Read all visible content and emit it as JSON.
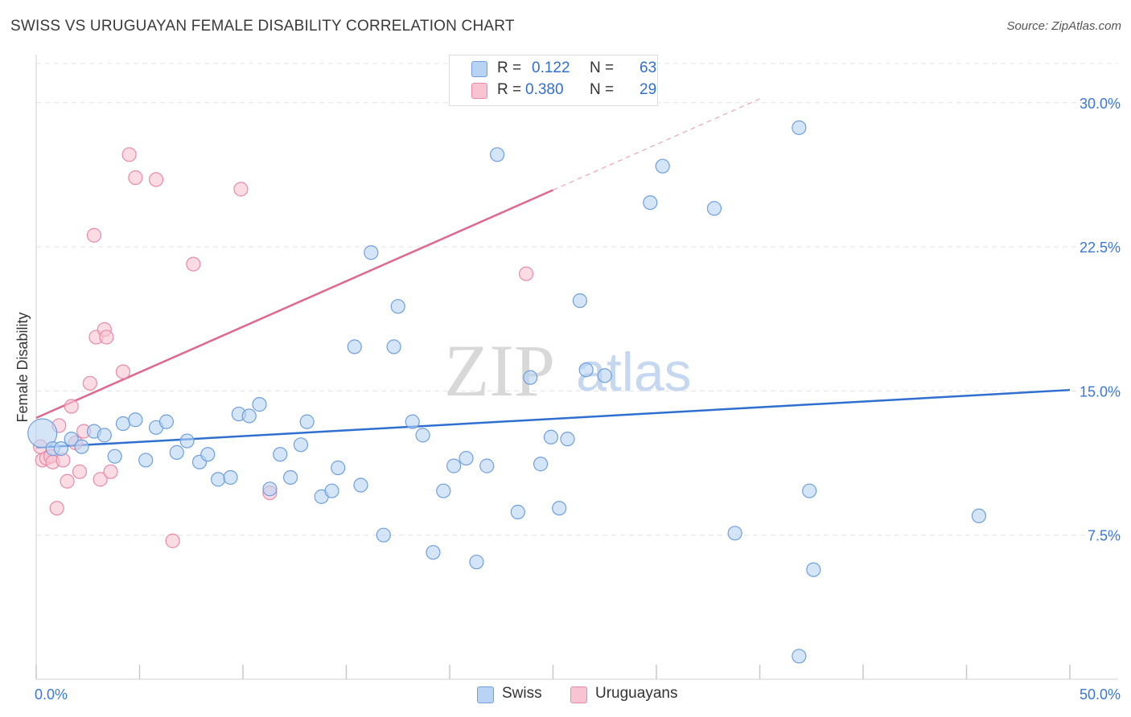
{
  "header": {
    "title": "SWISS VS URUGUAYAN FEMALE DISABILITY CORRELATION CHART",
    "source": "Source: ZipAtlas.com"
  },
  "legend": {
    "swiss": {
      "r_label": "R =",
      "r_value": "0.122",
      "n_label": "N =",
      "n_value": "63"
    },
    "uruguayans": {
      "r_label": "R =",
      "r_value": "0.380",
      "n_label": "N =",
      "n_value": "29"
    }
  },
  "bottom_legend": {
    "swiss": "Swiss",
    "uruguayans": "Uruguayans"
  },
  "watermark": {
    "zip": "ZIP",
    "atlas": "atlas"
  },
  "colors": {
    "swiss_fill": "#b9d3f3",
    "swiss_stroke": "#6f9fdc",
    "swiss_line": "#2f6fd0",
    "uru_fill": "#f8c4d4",
    "uru_stroke": "#e88aa8",
    "uru_line": "#e0678f",
    "grid": "#e3e3e3",
    "axis_text": "#3b78d6"
  },
  "chart_data": {
    "type": "scatter",
    "title": "SWISS VS URUGUAYAN FEMALE DISABILITY CORRELATION CHART",
    "xlabel": "",
    "ylabel": "Female Disability",
    "xlim": [
      0,
      50
    ],
    "ylim": [
      0,
      32.5
    ],
    "x_tick_labels": [
      "0.0%",
      "50.0%"
    ],
    "y_ticks": [
      7.5,
      15.0,
      22.5,
      30.0
    ],
    "y_tick_labels": [
      "7.5%",
      "15.0%",
      "22.5%",
      "30.0%"
    ],
    "series": [
      {
        "name": "Swiss",
        "trend": {
          "x": [
            0,
            50
          ],
          "y": [
            12.05,
            15.05
          ],
          "dashed_from": null
        },
        "points": [
          [
            0.3,
            12.8
          ],
          [
            0.8,
            12.0
          ],
          [
            1.2,
            12.0
          ],
          [
            1.7,
            12.5
          ],
          [
            2.2,
            12.1
          ],
          [
            2.8,
            12.9
          ],
          [
            3.3,
            12.7
          ],
          [
            3.8,
            11.6
          ],
          [
            4.2,
            13.3
          ],
          [
            4.8,
            13.5
          ],
          [
            5.3,
            11.4
          ],
          [
            5.8,
            13.1
          ],
          [
            6.3,
            13.4
          ],
          [
            6.8,
            11.8
          ],
          [
            7.3,
            12.4
          ],
          [
            7.9,
            11.3
          ],
          [
            8.3,
            11.7
          ],
          [
            8.8,
            10.4
          ],
          [
            9.4,
            10.5
          ],
          [
            9.8,
            13.8
          ],
          [
            10.3,
            13.7
          ],
          [
            10.8,
            14.3
          ],
          [
            11.3,
            9.9
          ],
          [
            11.8,
            11.7
          ],
          [
            12.3,
            10.5
          ],
          [
            12.8,
            12.2
          ],
          [
            13.1,
            13.4
          ],
          [
            13.8,
            9.5
          ],
          [
            14.3,
            9.8
          ],
          [
            14.6,
            11.0
          ],
          [
            15.4,
            17.3
          ],
          [
            15.7,
            10.1
          ],
          [
            16.2,
            22.2
          ],
          [
            16.8,
            7.5
          ],
          [
            17.3,
            17.3
          ],
          [
            17.5,
            19.4
          ],
          [
            18.2,
            13.4
          ],
          [
            18.7,
            12.7
          ],
          [
            19.2,
            6.6
          ],
          [
            19.7,
            9.8
          ],
          [
            20.2,
            11.1
          ],
          [
            20.8,
            11.5
          ],
          [
            21.3,
            6.1
          ],
          [
            21.8,
            11.1
          ],
          [
            22.3,
            27.3
          ],
          [
            23.3,
            8.7
          ],
          [
            23.9,
            15.7
          ],
          [
            24.4,
            11.2
          ],
          [
            24.9,
            12.6
          ],
          [
            25.3,
            8.9
          ],
          [
            25.7,
            12.5
          ],
          [
            26.3,
            19.7
          ],
          [
            26.6,
            16.1
          ],
          [
            27.5,
            15.8
          ],
          [
            29.7,
            24.8
          ],
          [
            30.3,
            26.7
          ],
          [
            32.8,
            24.5
          ],
          [
            33.8,
            7.6
          ],
          [
            36.9,
            1.2
          ],
          [
            36.9,
            28.7
          ],
          [
            37.4,
            9.8
          ],
          [
            37.6,
            5.7
          ],
          [
            45.6,
            8.5
          ]
        ]
      },
      {
        "name": "Uruguayans",
        "trend": {
          "x": [
            0,
            35
          ],
          "y": [
            13.6,
            30.2
          ],
          "dashed_from": 25
        },
        "points": [
          [
            0.2,
            12.1
          ],
          [
            0.3,
            11.4
          ],
          [
            0.5,
            11.5
          ],
          [
            0.7,
            11.6
          ],
          [
            0.8,
            11.3
          ],
          [
            1.0,
            8.9
          ],
          [
            1.1,
            13.2
          ],
          [
            1.3,
            11.4
          ],
          [
            1.5,
            10.3
          ],
          [
            1.7,
            14.2
          ],
          [
            1.9,
            12.3
          ],
          [
            2.1,
            10.8
          ],
          [
            2.3,
            12.9
          ],
          [
            2.6,
            15.4
          ],
          [
            2.8,
            23.1
          ],
          [
            2.9,
            17.8
          ],
          [
            3.1,
            10.4
          ],
          [
            3.3,
            18.2
          ],
          [
            3.4,
            17.8
          ],
          [
            3.6,
            10.8
          ],
          [
            4.2,
            16.0
          ],
          [
            4.5,
            27.3
          ],
          [
            4.8,
            26.1
          ],
          [
            5.8,
            26.0
          ],
          [
            6.6,
            7.2
          ],
          [
            7.6,
            21.6
          ],
          [
            9.9,
            25.5
          ],
          [
            11.3,
            9.7
          ],
          [
            23.7,
            21.1
          ]
        ]
      }
    ]
  }
}
